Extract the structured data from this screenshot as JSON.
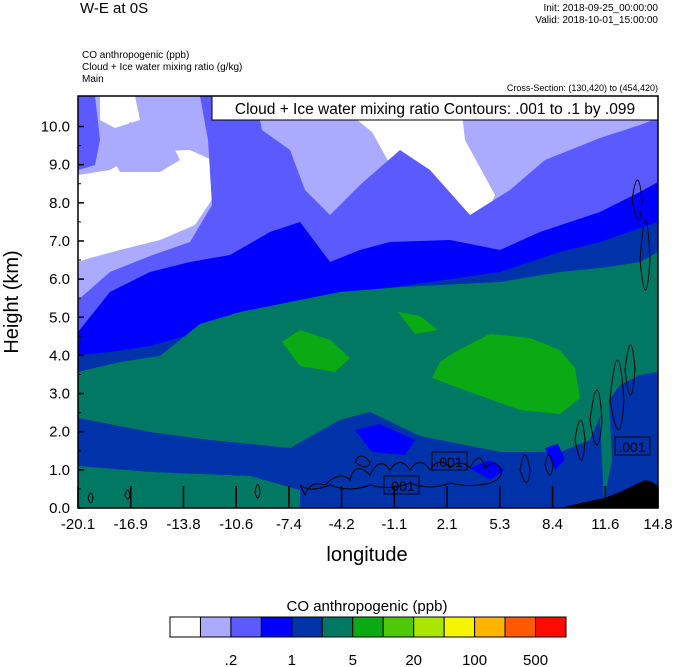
{
  "header": {
    "title": "W-E at 0S",
    "init": "Init: 2018-09-25_00:00:00",
    "valid": "Valid: 2018-10-01_15:00:00",
    "fields": [
      "CO anthropogenic   (ppb)",
      "Cloud + Ice water mixing ratio   (g/kg)",
      "Main"
    ],
    "cross_section": "Cross-Section: (130,420) to (454,420)"
  },
  "chart_data": {
    "type": "heatmap",
    "title": "W-E at 0S",
    "xlabel": "longitude",
    "ylabel": "Height (km)",
    "xlim": [
      -20.1,
      14.8
    ],
    "ylim": [
      0,
      10.8
    ],
    "x_ticks": [
      "-20.1",
      "-16.9",
      "-13.8",
      "-10.6",
      "-7.4",
      "-4.2",
      "-1.1",
      "2.1",
      "5.3",
      "8.4",
      "11.6",
      "14.8"
    ],
    "y_ticks": [
      "0.0",
      "1.0",
      "2.0",
      "3.0",
      "4.0",
      "5.0",
      "6.0",
      "7.0",
      "8.0",
      "9.0",
      "10.0"
    ],
    "overlay_title": "Cloud + Ice water mixing ratio Contours: .001 to .1 by .099",
    "contour_labels": [
      ".001",
      ".001",
      ".001"
    ],
    "colorbar": {
      "title": "CO anthropogenic  (ppb)",
      "colors": [
        "#ffffff",
        "#aaaaff",
        "#5a5aff",
        "#0000ff",
        "#0033aa",
        "#007864",
        "#0aaa14",
        "#50c80a",
        "#aae600",
        "#f5f500",
        "#ffb400",
        "#ff5a00",
        "#ff0a00"
      ],
      "labels": [
        ".2",
        "1",
        "5",
        "20",
        "100",
        "500"
      ]
    }
  }
}
